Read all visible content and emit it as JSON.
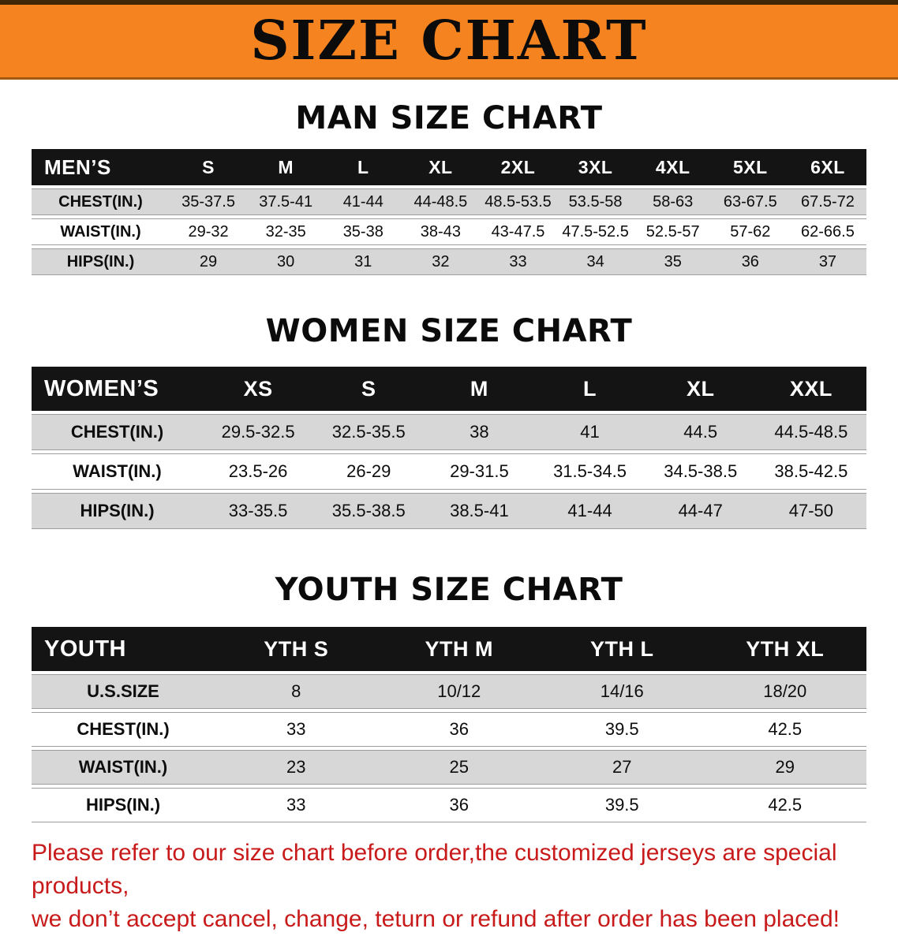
{
  "banner": {
    "title": "SIZE CHART"
  },
  "colors": {
    "banner_orange": "#f5831f",
    "header_black": "#141414",
    "row_gray": "#d7d7d7",
    "note_red": "#c81a1a"
  },
  "sections": [
    {
      "heading": "MAN SIZE CHART",
      "header_label": "MEN’S",
      "columns": [
        "S",
        "M",
        "L",
        "XL",
        "2XL",
        "3XL",
        "4XL",
        "5XL",
        "6XL"
      ],
      "rows": [
        {
          "label": "CHEST(IN.)",
          "values": [
            "35-37.5",
            "37.5-41",
            "41-44",
            "44-48.5",
            "48.5-53.5",
            "53.5-58",
            "58-63",
            "63-67.5",
            "67.5-72"
          ]
        },
        {
          "label": "WAIST(IN.)",
          "values": [
            "29-32",
            "32-35",
            "35-38",
            "38-43",
            "43-47.5",
            "47.5-52.5",
            "52.5-57",
            "57-62",
            "62-66.5"
          ]
        },
        {
          "label": "HIPS(IN.)",
          "values": [
            "29",
            "30",
            "31",
            "32",
            "33",
            "34",
            "35",
            "36",
            "37"
          ]
        }
      ]
    },
    {
      "heading": "WOMEN SIZE CHART",
      "header_label": "WOMEN’S",
      "columns": [
        "XS",
        "S",
        "M",
        "L",
        "XL",
        "XXL"
      ],
      "rows": [
        {
          "label": "CHEST(IN.)",
          "values": [
            "29.5-32.5",
            "32.5-35.5",
            "38",
            "41",
            "44.5",
            "44.5-48.5"
          ]
        },
        {
          "label": "WAIST(IN.)",
          "values": [
            "23.5-26",
            "26-29",
            "29-31.5",
            "31.5-34.5",
            "34.5-38.5",
            "38.5-42.5"
          ]
        },
        {
          "label": "HIPS(IN.)",
          "values": [
            "33-35.5",
            "35.5-38.5",
            "38.5-41",
            "41-44",
            "44-47",
            "47-50"
          ]
        }
      ]
    },
    {
      "heading": "YOUTH SIZE CHART",
      "header_label": "YOUTH",
      "columns": [
        "YTH S",
        "YTH M",
        "YTH L",
        "YTH XL"
      ],
      "rows": [
        {
          "label": "U.S.SIZE",
          "values": [
            "8",
            "10/12",
            "14/16",
            "18/20"
          ]
        },
        {
          "label": "CHEST(IN.)",
          "values": [
            "33",
            "36",
            "39.5",
            "42.5"
          ]
        },
        {
          "label": "WAIST(IN.)",
          "values": [
            "23",
            "25",
            "27",
            "29"
          ]
        },
        {
          "label": "HIPS(IN.)",
          "values": [
            "33",
            "36",
            "39.5",
            "42.5"
          ]
        }
      ]
    }
  ],
  "footer_note": {
    "line1": "Please refer to our size chart before order,the customized jerseys are special products,",
    "line2": "we don’t accept cancel, change, teturn or refund after order has been placed!"
  }
}
